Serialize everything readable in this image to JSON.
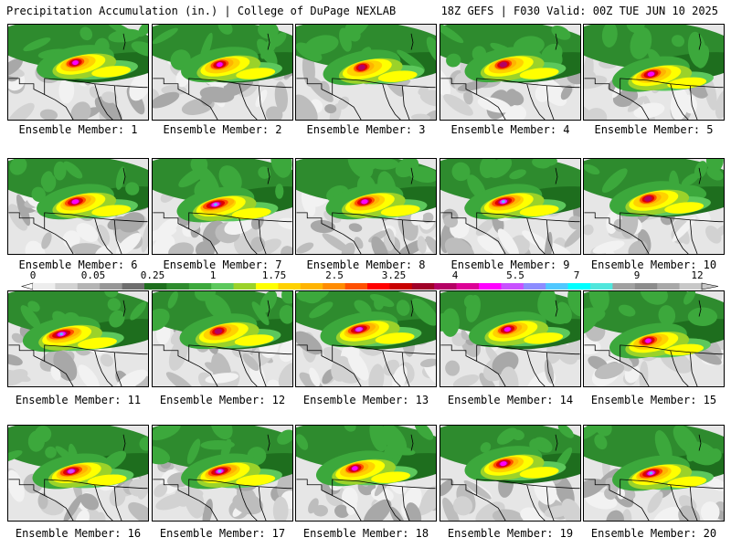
{
  "header": {
    "title": "Precipitation Accumulation (in.) | College of DuPage NEXLAB",
    "valid": "18Z GEFS | F030 Valid: 00Z TUE JUN 10 2025"
  },
  "members": [
    "Ensemble Member: 1",
    "Ensemble Member: 2",
    "Ensemble Member: 3",
    "Ensemble Member: 4",
    "Ensemble Member: 5",
    "Ensemble Member: 6",
    "Ensemble Member: 7",
    "Ensemble Member: 8",
    "Ensemble Member: 9",
    "Ensemble Member: 10",
    "Ensemble Member: 11",
    "Ensemble Member: 12",
    "Ensemble Member: 13",
    "Ensemble Member: 14",
    "Ensemble Member: 15",
    "Ensemble Member: 16",
    "Ensemble Member: 17",
    "Ensemble Member: 18",
    "Ensemble Member: 19",
    "Ensemble Member: 20"
  ],
  "colorbar": {
    "labels": [
      "0",
      "0.05",
      "0.25",
      "1",
      "1.75",
      "2.5",
      "3.25",
      "4",
      "5.5",
      "7",
      "9",
      "12"
    ],
    "colors": [
      "#ededed",
      "#d2d2d2",
      "#b4b4b4",
      "#969696",
      "#6e6e6e",
      "#1e6e1e",
      "#2e8b2e",
      "#3ca83c",
      "#5cc85c",
      "#9bd22a",
      "#ffff00",
      "#ffd200",
      "#ffb400",
      "#ff8c00",
      "#ff5000",
      "#ff0000",
      "#c80000",
      "#a00028",
      "#b40064",
      "#dc0096",
      "#ff00ff",
      "#c850ff",
      "#8c8cff",
      "#50c8ff",
      "#00ffff",
      "#50e6dc",
      "#a0a0a0",
      "#8c8c8c",
      "#a8a8a8",
      "#c8c8c8"
    ]
  }
}
